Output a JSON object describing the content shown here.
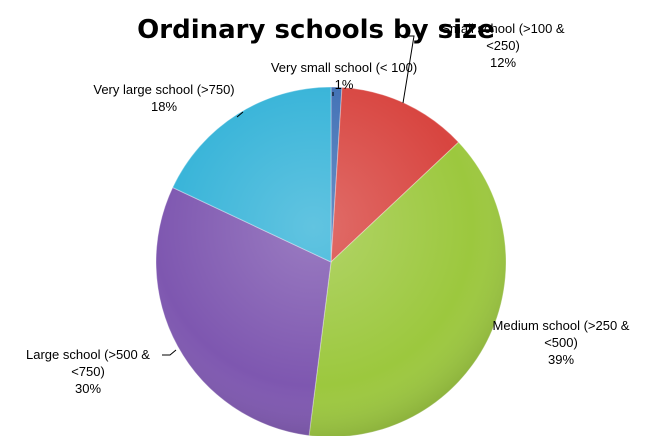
{
  "chart_data": {
    "type": "pie",
    "title": "Ordinary schools by size",
    "slices": [
      {
        "category": "Very small school (< 100)",
        "label_lines": [
          "Very small school (< 100)"
        ],
        "percent_label": "1%",
        "value": 1,
        "color": "#3F6FB5"
      },
      {
        "category": "Small school (>100 & <250)",
        "label_lines": [
          "Small school (>100 &",
          "<250)"
        ],
        "percent_label": "12%",
        "value": 12,
        "color": "#D84540"
      },
      {
        "category": "Medium school (>250 & <500)",
        "label_lines": [
          "Medium school (>250 &",
          "<500)"
        ],
        "percent_label": "39%",
        "value": 39,
        "color": "#9CC83E"
      },
      {
        "category": "Large school (>500 & <750)",
        "label_lines": [
          "Large school (>500 &",
          "<750)"
        ],
        "percent_label": "30%",
        "value": 30,
        "color": "#7E57B0"
      },
      {
        "category": "Very large school (>750)",
        "label_lines": [
          "Very large school (>750)"
        ],
        "percent_label": "18%",
        "value": 18,
        "color": "#35B3D8"
      }
    ],
    "legend": "none"
  }
}
